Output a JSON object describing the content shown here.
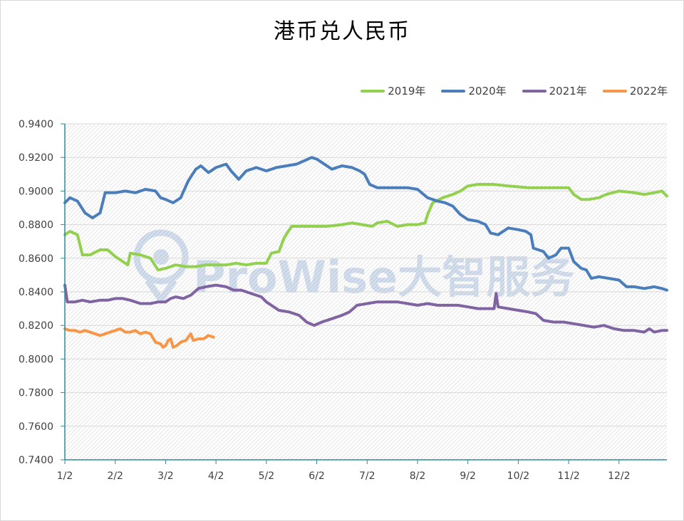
{
  "chart_data": {
    "type": "line",
    "title": "港币兑人民币",
    "ylim": [
      0.74,
      0.94
    ],
    "y_ticks": [
      "0.9400",
      "0.9200",
      "0.9000",
      "0.8800",
      "0.8600",
      "0.8400",
      "0.8200",
      "0.8000",
      "0.7800",
      "0.7600",
      "0.7400"
    ],
    "x_ticks": [
      "1/2",
      "2/2",
      "3/2",
      "4/2",
      "5/2",
      "6/2",
      "7/2",
      "8/2",
      "9/2",
      "10/2",
      "11/2",
      "12/2"
    ],
    "x_range_months": [
      1,
      12.95
    ],
    "legend_position": "top-right",
    "grid": "hatched background",
    "watermark": "ProWise大智服务",
    "series": [
      {
        "name": "2019年",
        "color": "#92d050",
        "points": [
          [
            1.0,
            0.874
          ],
          [
            1.1,
            0.876
          ],
          [
            1.25,
            0.874
          ],
          [
            1.35,
            0.862
          ],
          [
            1.5,
            0.862
          ],
          [
            1.7,
            0.865
          ],
          [
            1.85,
            0.865
          ],
          [
            2.0,
            0.861
          ],
          [
            2.15,
            0.858
          ],
          [
            2.25,
            0.856
          ],
          [
            2.3,
            0.863
          ],
          [
            2.5,
            0.862
          ],
          [
            2.7,
            0.86
          ],
          [
            2.85,
            0.853
          ],
          [
            3.0,
            0.854
          ],
          [
            3.2,
            0.856
          ],
          [
            3.4,
            0.855
          ],
          [
            3.6,
            0.855
          ],
          [
            3.8,
            0.856
          ],
          [
            4.0,
            0.856
          ],
          [
            4.2,
            0.856
          ],
          [
            4.4,
            0.857
          ],
          [
            4.6,
            0.856
          ],
          [
            4.8,
            0.857
          ],
          [
            5.0,
            0.857
          ],
          [
            5.1,
            0.863
          ],
          [
            5.25,
            0.864
          ],
          [
            5.35,
            0.872
          ],
          [
            5.5,
            0.879
          ],
          [
            5.8,
            0.879
          ],
          [
            6.2,
            0.879
          ],
          [
            6.5,
            0.88
          ],
          [
            6.7,
            0.881
          ],
          [
            6.9,
            0.88
          ],
          [
            7.1,
            0.879
          ],
          [
            7.2,
            0.881
          ],
          [
            7.4,
            0.882
          ],
          [
            7.6,
            0.879
          ],
          [
            7.8,
            0.88
          ],
          [
            8.0,
            0.88
          ],
          [
            8.15,
            0.881
          ],
          [
            8.2,
            0.886
          ],
          [
            8.3,
            0.893
          ],
          [
            8.5,
            0.896
          ],
          [
            8.7,
            0.898
          ],
          [
            8.85,
            0.9
          ],
          [
            9.0,
            0.903
          ],
          [
            9.2,
            0.904
          ],
          [
            9.5,
            0.904
          ],
          [
            9.8,
            0.903
          ],
          [
            10.2,
            0.902
          ],
          [
            10.6,
            0.902
          ],
          [
            11.0,
            0.902
          ],
          [
            11.1,
            0.898
          ],
          [
            11.25,
            0.895
          ],
          [
            11.4,
            0.895
          ],
          [
            11.6,
            0.896
          ],
          [
            11.75,
            0.898
          ],
          [
            12.0,
            0.9
          ],
          [
            12.3,
            0.899
          ],
          [
            12.5,
            0.898
          ],
          [
            12.7,
            0.899
          ],
          [
            12.85,
            0.9
          ],
          [
            12.95,
            0.897
          ]
        ]
      },
      {
        "name": "2020年",
        "color": "#4a7ebb",
        "points": [
          [
            1.0,
            0.893
          ],
          [
            1.1,
            0.896
          ],
          [
            1.25,
            0.894
          ],
          [
            1.4,
            0.887
          ],
          [
            1.55,
            0.884
          ],
          [
            1.7,
            0.887
          ],
          [
            1.8,
            0.899
          ],
          [
            2.0,
            0.899
          ],
          [
            2.2,
            0.9
          ],
          [
            2.4,
            0.899
          ],
          [
            2.6,
            0.901
          ],
          [
            2.8,
            0.9
          ],
          [
            2.9,
            0.896
          ],
          [
            3.0,
            0.895
          ],
          [
            3.15,
            0.893
          ],
          [
            3.3,
            0.896
          ],
          [
            3.45,
            0.906
          ],
          [
            3.6,
            0.913
          ],
          [
            3.7,
            0.915
          ],
          [
            3.85,
            0.911
          ],
          [
            4.0,
            0.914
          ],
          [
            4.2,
            0.916
          ],
          [
            4.3,
            0.912
          ],
          [
            4.45,
            0.907
          ],
          [
            4.6,
            0.912
          ],
          [
            4.8,
            0.914
          ],
          [
            5.0,
            0.912
          ],
          [
            5.2,
            0.914
          ],
          [
            5.4,
            0.915
          ],
          [
            5.6,
            0.916
          ],
          [
            5.75,
            0.918
          ],
          [
            5.9,
            0.92
          ],
          [
            6.0,
            0.919
          ],
          [
            6.15,
            0.916
          ],
          [
            6.3,
            0.913
          ],
          [
            6.5,
            0.915
          ],
          [
            6.7,
            0.914
          ],
          [
            6.85,
            0.912
          ],
          [
            6.95,
            0.91
          ],
          [
            7.05,
            0.904
          ],
          [
            7.2,
            0.902
          ],
          [
            7.4,
            0.902
          ],
          [
            7.6,
            0.902
          ],
          [
            7.8,
            0.902
          ],
          [
            8.0,
            0.901
          ],
          [
            8.2,
            0.896
          ],
          [
            8.4,
            0.894
          ],
          [
            8.55,
            0.893
          ],
          [
            8.7,
            0.891
          ],
          [
            8.85,
            0.886
          ],
          [
            9.0,
            0.883
          ],
          [
            9.2,
            0.882
          ],
          [
            9.35,
            0.88
          ],
          [
            9.45,
            0.875
          ],
          [
            9.6,
            0.874
          ],
          [
            9.8,
            0.878
          ],
          [
            10.0,
            0.877
          ],
          [
            10.15,
            0.876
          ],
          [
            10.25,
            0.874
          ],
          [
            10.3,
            0.866
          ],
          [
            10.5,
            0.864
          ],
          [
            10.6,
            0.86
          ],
          [
            10.75,
            0.862
          ],
          [
            10.85,
            0.866
          ],
          [
            11.0,
            0.866
          ],
          [
            11.1,
            0.858
          ],
          [
            11.25,
            0.854
          ],
          [
            11.35,
            0.853
          ],
          [
            11.45,
            0.848
          ],
          [
            11.6,
            0.849
          ],
          [
            11.8,
            0.848
          ],
          [
            12.0,
            0.847
          ],
          [
            12.15,
            0.843
          ],
          [
            12.3,
            0.843
          ],
          [
            12.5,
            0.842
          ],
          [
            12.7,
            0.843
          ],
          [
            12.85,
            0.842
          ],
          [
            12.95,
            0.841
          ]
        ]
      },
      {
        "name": "2021年",
        "color": "#8064a2",
        "points": [
          [
            1.0,
            0.844
          ],
          [
            1.05,
            0.834
          ],
          [
            1.2,
            0.834
          ],
          [
            1.35,
            0.835
          ],
          [
            1.5,
            0.834
          ],
          [
            1.7,
            0.835
          ],
          [
            1.85,
            0.835
          ],
          [
            2.0,
            0.836
          ],
          [
            2.15,
            0.836
          ],
          [
            2.3,
            0.835
          ],
          [
            2.5,
            0.833
          ],
          [
            2.7,
            0.833
          ],
          [
            2.85,
            0.834
          ],
          [
            3.0,
            0.834
          ],
          [
            3.1,
            0.836
          ],
          [
            3.2,
            0.837
          ],
          [
            3.35,
            0.836
          ],
          [
            3.5,
            0.838
          ],
          [
            3.65,
            0.842
          ],
          [
            3.8,
            0.843
          ],
          [
            4.0,
            0.844
          ],
          [
            4.2,
            0.843
          ],
          [
            4.35,
            0.841
          ],
          [
            4.5,
            0.841
          ],
          [
            4.7,
            0.839
          ],
          [
            4.9,
            0.837
          ],
          [
            5.0,
            0.834
          ],
          [
            5.1,
            0.832
          ],
          [
            5.25,
            0.829
          ],
          [
            5.45,
            0.828
          ],
          [
            5.65,
            0.826
          ],
          [
            5.8,
            0.822
          ],
          [
            5.95,
            0.82
          ],
          [
            6.1,
            0.822
          ],
          [
            6.3,
            0.824
          ],
          [
            6.5,
            0.826
          ],
          [
            6.65,
            0.828
          ],
          [
            6.8,
            0.832
          ],
          [
            7.0,
            0.833
          ],
          [
            7.2,
            0.834
          ],
          [
            7.4,
            0.834
          ],
          [
            7.6,
            0.834
          ],
          [
            7.8,
            0.833
          ],
          [
            8.0,
            0.832
          ],
          [
            8.2,
            0.833
          ],
          [
            8.4,
            0.832
          ],
          [
            8.6,
            0.832
          ],
          [
            8.8,
            0.832
          ],
          [
            9.0,
            0.831
          ],
          [
            9.2,
            0.83
          ],
          [
            9.4,
            0.83
          ],
          [
            9.52,
            0.83
          ],
          [
            9.56,
            0.839
          ],
          [
            9.6,
            0.831
          ],
          [
            9.8,
            0.83
          ],
          [
            10.0,
            0.829
          ],
          [
            10.2,
            0.828
          ],
          [
            10.35,
            0.827
          ],
          [
            10.5,
            0.823
          ],
          [
            10.7,
            0.822
          ],
          [
            10.9,
            0.822
          ],
          [
            11.1,
            0.821
          ],
          [
            11.3,
            0.82
          ],
          [
            11.5,
            0.819
          ],
          [
            11.7,
            0.82
          ],
          [
            11.9,
            0.818
          ],
          [
            12.1,
            0.817
          ],
          [
            12.3,
            0.817
          ],
          [
            12.5,
            0.816
          ],
          [
            12.6,
            0.818
          ],
          [
            12.7,
            0.816
          ],
          [
            12.85,
            0.817
          ],
          [
            12.95,
            0.817
          ]
        ]
      },
      {
        "name": "2022年",
        "color": "#f79646",
        "points": [
          [
            1.0,
            0.818
          ],
          [
            1.1,
            0.817
          ],
          [
            1.2,
            0.817
          ],
          [
            1.3,
            0.816
          ],
          [
            1.4,
            0.817
          ],
          [
            1.5,
            0.816
          ],
          [
            1.6,
            0.815
          ],
          [
            1.7,
            0.814
          ],
          [
            1.8,
            0.815
          ],
          [
            1.9,
            0.816
          ],
          [
            2.0,
            0.817
          ],
          [
            2.1,
            0.818
          ],
          [
            2.2,
            0.816
          ],
          [
            2.3,
            0.816
          ],
          [
            2.4,
            0.817
          ],
          [
            2.5,
            0.815
          ],
          [
            2.6,
            0.816
          ],
          [
            2.7,
            0.815
          ],
          [
            2.8,
            0.81
          ],
          [
            2.9,
            0.809
          ],
          [
            2.95,
            0.807
          ],
          [
            3.0,
            0.808
          ],
          [
            3.05,
            0.811
          ],
          [
            3.1,
            0.812
          ],
          [
            3.15,
            0.807
          ],
          [
            3.22,
            0.808
          ],
          [
            3.3,
            0.81
          ],
          [
            3.4,
            0.811
          ],
          [
            3.45,
            0.813
          ],
          [
            3.5,
            0.815
          ],
          [
            3.55,
            0.811
          ],
          [
            3.65,
            0.812
          ],
          [
            3.75,
            0.812
          ],
          [
            3.85,
            0.814
          ],
          [
            3.95,
            0.813
          ]
        ]
      }
    ]
  }
}
